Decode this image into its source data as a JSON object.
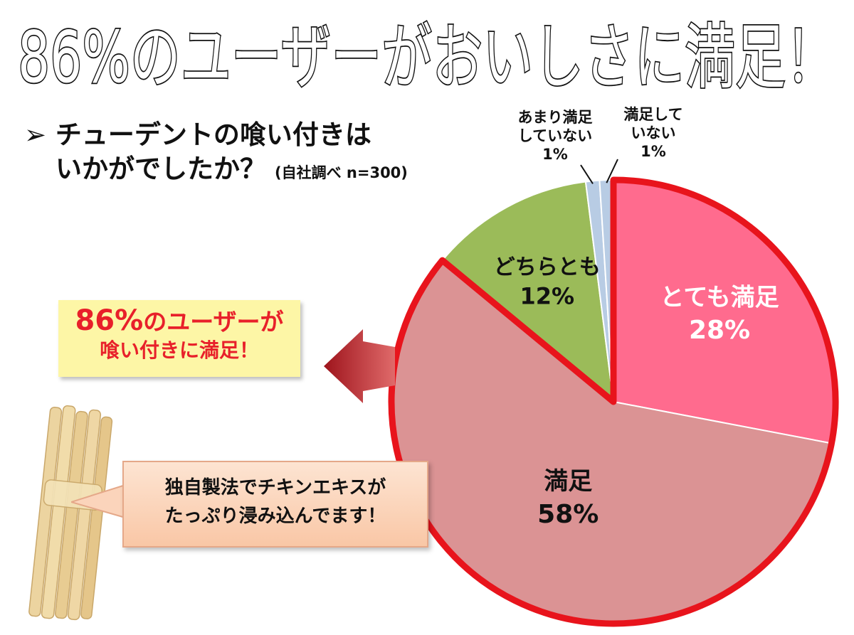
{
  "headline": "86%のユーザーがおいしさに満足！",
  "question": {
    "bullet": "➢",
    "line1": "チューデントの喰い付きは",
    "line2": "いかがでしたか？",
    "survey_note": "(自社調べ n=300)"
  },
  "callout": {
    "pct": "86%",
    "line1_rest": "のユーザーが",
    "line2": "喰い付きに満足！"
  },
  "bubble": {
    "line1": "独自製法でチキンエキスが",
    "line2": "たっぷり浸み込んでます！"
  },
  "colors": {
    "very_satisfied": "#ff6b8e",
    "satisfied": "#db9394",
    "neutral": "#9bbb59",
    "slightly_unsatisfied": "#b8cce4",
    "unsatisfied": "#b8cce4",
    "highlight_outline": "#e8141c",
    "arrow": "#b01c24"
  },
  "chart_data": {
    "type": "pie",
    "slices": [
      {
        "name": "とても満足",
        "value": 28,
        "value_label": "28%",
        "highlight": true
      },
      {
        "name": "満足",
        "value": 58,
        "value_label": "58%",
        "highlight": true
      },
      {
        "name": "どちらとも",
        "value": 12,
        "value_label": "12%",
        "highlight": false
      },
      {
        "name_lines": [
          "あまり満足",
          "していない"
        ],
        "value": 1,
        "value_label": "1%",
        "highlight": false
      },
      {
        "name_lines": [
          "満足して",
          "いない"
        ],
        "value": 1,
        "value_label": "1%",
        "highlight": false
      }
    ]
  }
}
